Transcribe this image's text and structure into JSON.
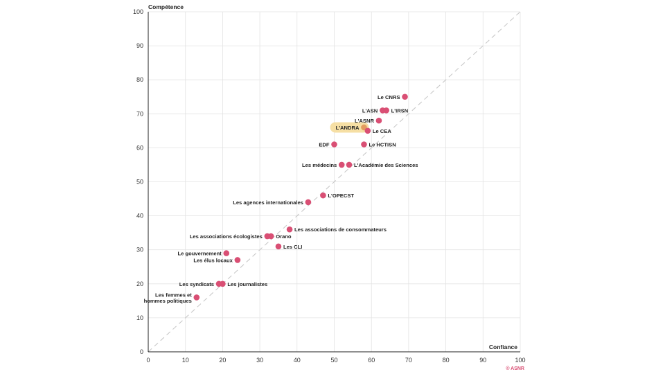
{
  "chart_data": {
    "type": "scatter",
    "xlabel": "Confiance",
    "ylabel": "Compétence",
    "xlim": [
      0,
      100
    ],
    "ylim": [
      0,
      100
    ],
    "xticks": [
      0,
      10,
      20,
      30,
      40,
      50,
      60,
      70,
      80,
      90,
      100
    ],
    "yticks": [
      0,
      10,
      20,
      30,
      40,
      50,
      60,
      70,
      80,
      90,
      100
    ],
    "grid": true,
    "reference_line": {
      "from": [
        0,
        0
      ],
      "to": [
        100,
        100
      ],
      "style": "dashed"
    },
    "highlight": "L'ANDRA",
    "point_color": "#d94f74",
    "highlight_color": "#f6dfa4",
    "credit": "© ASNR",
    "credit_color": "#d94f74",
    "points": [
      {
        "label": "Le CNRS",
        "x": 69,
        "y": 75,
        "anchor": "left"
      },
      {
        "label": "L'ASN",
        "x": 63,
        "y": 71,
        "anchor": "left"
      },
      {
        "label": "L'IRSN",
        "x": 64,
        "y": 71,
        "anchor": "right"
      },
      {
        "label": "L'ASNR",
        "x": 62,
        "y": 68,
        "anchor": "left"
      },
      {
        "label": "L'ANDRA",
        "x": 58,
        "y": 66,
        "anchor": "left"
      },
      {
        "label": "Le CEA",
        "x": 59,
        "y": 65,
        "anchor": "right"
      },
      {
        "label": "EDF",
        "x": 50,
        "y": 61,
        "anchor": "left"
      },
      {
        "label": "Le HCTISN",
        "x": 58,
        "y": 61,
        "anchor": "right"
      },
      {
        "label": "Les médecins",
        "x": 52,
        "y": 55,
        "anchor": "left"
      },
      {
        "label": "L'Académie des Sciences",
        "x": 54,
        "y": 55,
        "anchor": "right"
      },
      {
        "label": "L'OPECST",
        "x": 47,
        "y": 46,
        "anchor": "right"
      },
      {
        "label": "Les agences internationales",
        "x": 43,
        "y": 44,
        "anchor": "left"
      },
      {
        "label": "Les associations de consommateurs",
        "x": 38,
        "y": 36,
        "anchor": "right"
      },
      {
        "label": "Les associations écologistes",
        "x": 32,
        "y": 34,
        "anchor": "left"
      },
      {
        "label": "Orano",
        "x": 33,
        "y": 34,
        "anchor": "right"
      },
      {
        "label": "Les CLI",
        "x": 35,
        "y": 31,
        "anchor": "right"
      },
      {
        "label": "Le gouvernement",
        "x": 21,
        "y": 29,
        "anchor": "left"
      },
      {
        "label": "Les élus locaux",
        "x": 24,
        "y": 27,
        "anchor": "left"
      },
      {
        "label": "Les syndicats",
        "x": 19,
        "y": 20,
        "anchor": "left"
      },
      {
        "label": "Les journalistes",
        "x": 20,
        "y": 20,
        "anchor": "right"
      },
      {
        "label": "Les femmes et",
        "label2": "hommes politiques",
        "x": 13,
        "y": 16,
        "anchor": "left"
      }
    ]
  }
}
